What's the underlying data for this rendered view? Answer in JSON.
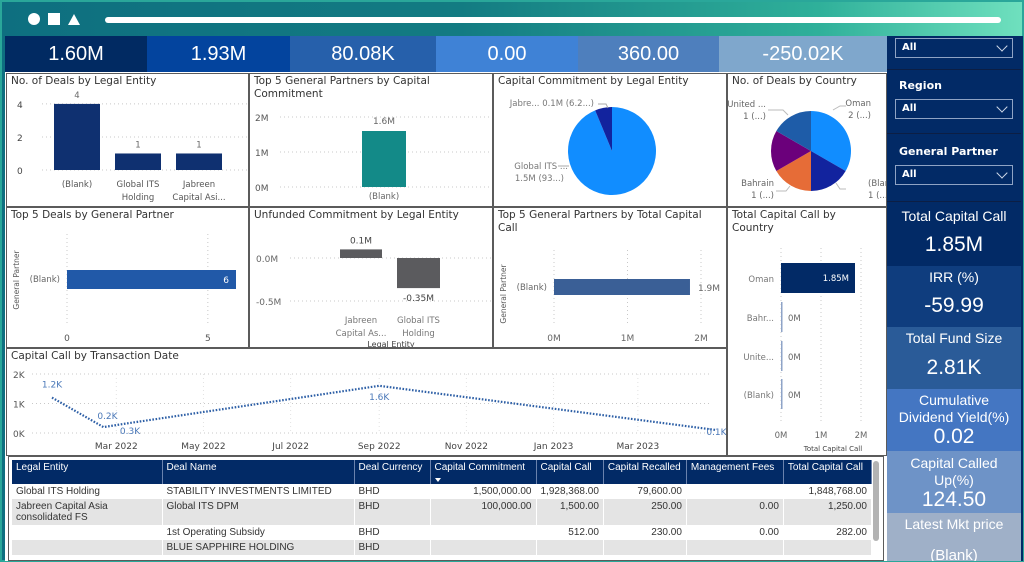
{
  "kpis": [
    {
      "value": "1.60M",
      "color": "#012a62"
    },
    {
      "value": "1.93M",
      "color": "#03449e"
    },
    {
      "value": "80.08K",
      "color": "#2660ab"
    },
    {
      "value": "0.00",
      "color": "#3f82d6"
    },
    {
      "value": "360.00",
      "color": "#4e7fbd"
    },
    {
      "value": "-250.02K",
      "color": "#7fa7cc"
    }
  ],
  "slicers": [
    {
      "title": "",
      "value": "All"
    },
    {
      "title": "Region",
      "value": "All"
    },
    {
      "title": "General Partner",
      "value": "All"
    }
  ],
  "cards": [
    {
      "label": "Total Capital Call",
      "value": "1.85M",
      "color": "#022a66"
    },
    {
      "label": "IRR (%)",
      "value": "-59.99",
      "color": "#0f3d7e"
    },
    {
      "label": "Total Fund Size",
      "value": "2.81K",
      "color": "#2a5b98"
    },
    {
      "label": "Cumulative Dividend Yield(%)",
      "value": "0.02",
      "color": "#4476c2"
    },
    {
      "label": "Capital Called Up(%)",
      "value": "124.50",
      "color": "#6e93c7"
    },
    {
      "label": "Latest Mkt price",
      "value": "(Blank)",
      "color": "#9fb0c8"
    }
  ],
  "chart_data": [
    {
      "id": "deals-by-entity",
      "type": "bar",
      "title": "No. of Deals by Legal Entity",
      "categories": [
        "(Blank)",
        "Global ITS Holding",
        "Jabreen Capital Asi..."
      ],
      "category_lines": [
        [
          "(Blank)"
        ],
        [
          "Global ITS",
          "Holding"
        ],
        [
          "Jabreen",
          "Capital Asi..."
        ]
      ],
      "values": [
        4,
        1,
        1
      ],
      "data_labels": [
        "4",
        "1",
        "1"
      ],
      "yticks": [
        0,
        2,
        4
      ],
      "ylim": [
        0,
        4.6
      ],
      "color": "#0f3070"
    },
    {
      "id": "gp-commitment",
      "type": "bar",
      "title": "Top 5 General Partners by Capital Commitment",
      "categories": [
        "(Blank)"
      ],
      "values": [
        1.6
      ],
      "data_labels": [
        "1.6M"
      ],
      "yticks": [
        "0M",
        "1M",
        "2M"
      ],
      "ylim": [
        0,
        2
      ],
      "color": "#138a88"
    },
    {
      "id": "commitment-by-entity",
      "type": "pie",
      "title": "Capital Commitment by Legal Entity",
      "slices": [
        {
          "label": "Global ITS ...",
          "value": 1.5,
          "display": "1.5M (93...)",
          "color": "#118dff"
        },
        {
          "label": "Jabre...",
          "value": 0.1,
          "display": "0.1M (6.2...)",
          "color": "#12239e"
        }
      ]
    },
    {
      "id": "deals-by-country",
      "type": "pie",
      "title": "No. of Deals by Country",
      "slices": [
        {
          "label": "Oman",
          "value": 2,
          "display": "2 (...)",
          "color": "#118dff"
        },
        {
          "label": "(Blank)",
          "value": 1,
          "display": "1 (...)",
          "color": "#12239e"
        },
        {
          "label": "Bahrain",
          "value": 1,
          "display": "1 (...)",
          "color": "#e66c37"
        },
        {
          "label": "",
          "value": 1,
          "display": "",
          "color": "#6b007b"
        },
        {
          "label": "United ...",
          "value": 1,
          "display": "1 (...)",
          "color": "#1e5ca8"
        }
      ]
    },
    {
      "id": "deals-by-gp",
      "type": "bar",
      "orientation": "horizontal",
      "title": "Top 5 Deals by General Partner",
      "ylabel": "General Partner",
      "categories": [
        "(Blank)"
      ],
      "values": [
        6
      ],
      "data_labels": [
        "6"
      ],
      "xticks": [
        0,
        5
      ],
      "xlim": [
        0,
        6
      ],
      "color": "#2159a8"
    },
    {
      "id": "unfunded-by-entity",
      "type": "bar",
      "title": "Unfunded Commitment by Legal Entity",
      "xlabel": "Legal Entity",
      "categories": [
        "Jabreen Capital As...",
        "Global ITS Holding"
      ],
      "category_lines": [
        [
          "Jabreen",
          "Capital As..."
        ],
        [
          "Global ITS",
          "Holding"
        ]
      ],
      "values": [
        0.1,
        -0.35
      ],
      "data_labels": [
        "0.1M",
        "-0.35M"
      ],
      "yticks": [
        "0.0M",
        "-0.5M"
      ],
      "ylim": [
        -0.5,
        0.0
      ],
      "color": "#5b5b5e"
    },
    {
      "id": "gp-total-call",
      "type": "bar",
      "orientation": "horizontal",
      "title": "Top 5 General Partners by Total Capital Call",
      "ylabel": "General Partner",
      "categories": [
        "(Blank)"
      ],
      "values": [
        1.85
      ],
      "data_labels": [
        "1.9M"
      ],
      "xticks": [
        "0M",
        "1M",
        "2M"
      ],
      "xlim": [
        0,
        2
      ],
      "color": "#3a5f96"
    },
    {
      "id": "call-by-country",
      "type": "bar",
      "orientation": "horizontal",
      "title": "Total Capital Call by Country",
      "xlabel": "Total Capital Call",
      "categories": [
        "Oman",
        "Bahr...",
        "Unite...",
        "(Blank)"
      ],
      "values": [
        1.85,
        0,
        0,
        0
      ],
      "data_labels": [
        "1.85M",
        "0M",
        "0M",
        "0M"
      ],
      "xticks": [
        "0M",
        "1M",
        "2M"
      ],
      "xlim": [
        0,
        2
      ],
      "color": "#022a66"
    },
    {
      "id": "call-by-date",
      "type": "line",
      "title": "Capital Call by Transaction Date",
      "x": [
        "2022-01-15",
        "2022-02-20",
        "2022-03-05",
        "2022-09-01",
        "2023-04-25"
      ],
      "values": [
        1.2,
        0.2,
        0.3,
        1.6,
        0.1
      ],
      "data_labels": [
        "1.2K",
        "0.2K",
        "0.3K",
        "1.6K",
        "0.1K"
      ],
      "xticks": [
        "Mar 2022",
        "May 2022",
        "Jul 2022",
        "Sep 2022",
        "Nov 2022",
        "Jan 2023",
        "Mar 2023"
      ],
      "yticks": [
        "0K",
        "1K",
        "2K"
      ],
      "ylim": [
        0,
        2
      ],
      "color": "#2d5fa6"
    }
  ],
  "table": {
    "columns": [
      "Legal Entity",
      "Deal Name",
      "Deal Currency",
      "Capital Commitment",
      "Capital Call",
      "Capital Recalled",
      "Management Fees",
      "Total Capital Call"
    ],
    "sorted_column": 3,
    "rows": [
      [
        "Global ITS Holding",
        "STABILITY INVESTMENTS LIMITED",
        "BHD",
        "1,500,000.00",
        "1,928,368.00",
        "79,600.00",
        "",
        "1,848,768.00"
      ],
      [
        "Jabreen Capital Asia consolidated FS",
        "Global ITS DPM",
        "BHD",
        "100,000.00",
        "1,500.00",
        "250.00",
        "0.00",
        "1,250.00"
      ],
      [
        "",
        "1st Operating Subsidy",
        "BHD",
        "",
        "512.00",
        "230.00",
        "0.00",
        "282.00"
      ],
      [
        "",
        "BLUE SAPPHIRE HOLDING",
        "BHD",
        "",
        "",
        "",
        "",
        ""
      ]
    ]
  }
}
